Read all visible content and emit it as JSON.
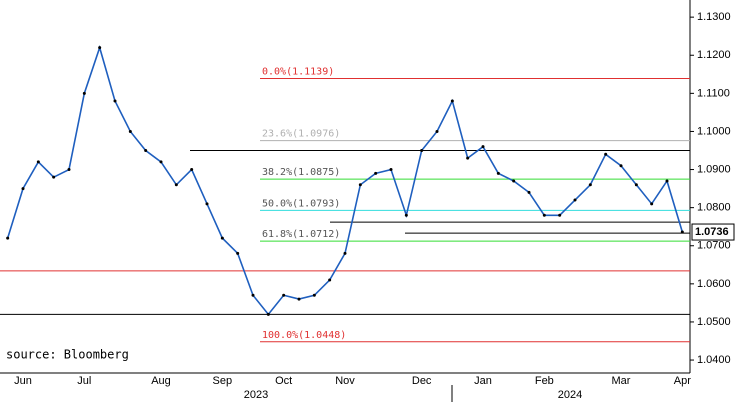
{
  "chart_data": {
    "type": "line",
    "source": "source: Bloomberg",
    "categories": [
      null,
      "Jun",
      null,
      null,
      null,
      "Jul",
      null,
      null,
      null,
      null,
      "Aug",
      null,
      null,
      null,
      "Sep",
      null,
      null,
      null,
      "Oct",
      null,
      null,
      null,
      "Nov",
      null,
      null,
      null,
      null,
      "Dec",
      null,
      null,
      null,
      "Jan",
      null,
      null,
      null,
      "Feb",
      null,
      null,
      null,
      null,
      "Mar",
      null,
      null,
      null,
      "Apr"
    ],
    "years": [
      "2023",
      "2024"
    ],
    "series": [
      {
        "color": "#1f5fbf",
        "values": [
          1.072,
          1.085,
          1.092,
          1.088,
          1.09,
          1.11,
          1.122,
          1.108,
          1.1,
          1.095,
          1.092,
          1.086,
          1.09,
          1.081,
          1.072,
          1.068,
          1.057,
          1.052,
          1.057,
          1.056,
          1.057,
          1.061,
          1.068,
          1.086,
          1.089,
          1.09,
          1.078,
          1.095,
          1.1,
          1.108,
          1.093,
          1.096,
          1.089,
          1.087,
          1.084,
          1.078,
          1.078,
          1.082,
          1.086,
          1.094,
          1.091,
          1.086,
          1.081,
          1.087,
          1.0736
        ]
      }
    ],
    "current": {
      "value": 1.0736,
      "label": "1.0736"
    },
    "fib_levels": [
      {
        "label": "0.0%(1.1139)",
        "value": 1.1139,
        "color": "#e03030"
      },
      {
        "label": "23.6%(1.0976)",
        "value": 1.0976,
        "color": "#b0b0b0"
      },
      {
        "label": "38.2%(1.0875)",
        "value": 1.0875,
        "color": "#33dd33"
      },
      {
        "label": "50.0%(1.0793)",
        "value": 1.0793,
        "color": "#33dddd"
      },
      {
        "label": "61.8%(1.0712)",
        "value": 1.0712,
        "color": "#33dd33"
      },
      {
        "label": "100.0%(1.0448)",
        "value": 1.0448,
        "color": "#e03030"
      }
    ],
    "levels": [
      {
        "value": 1.095,
        "color": "#000000"
      },
      {
        "value": 1.052,
        "color": "#000000"
      },
      {
        "value": 1.0634,
        "color": "#e03030"
      },
      {
        "value": 1.0762,
        "color": "#000000"
      },
      {
        "value": 1.0733,
        "color": "#000000"
      }
    ],
    "ylim": [
      1.0366,
      1.1345
    ],
    "yticks": [
      {
        "value": 1.04,
        "label": "1.0400"
      },
      {
        "value": 1.05,
        "label": "1.0500"
      },
      {
        "value": 1.06,
        "label": "1.0600"
      },
      {
        "value": 1.07,
        "label": "1.0700"
      },
      {
        "value": 1.08,
        "label": "1.0800"
      },
      {
        "value": 1.09,
        "label": "1.0900"
      },
      {
        "value": 1.1,
        "label": "1.1000"
      },
      {
        "value": 1.11,
        "label": "1.1100"
      },
      {
        "value": 1.12,
        "label": "1.1200"
      },
      {
        "value": 1.13,
        "label": "1.1300"
      }
    ]
  }
}
